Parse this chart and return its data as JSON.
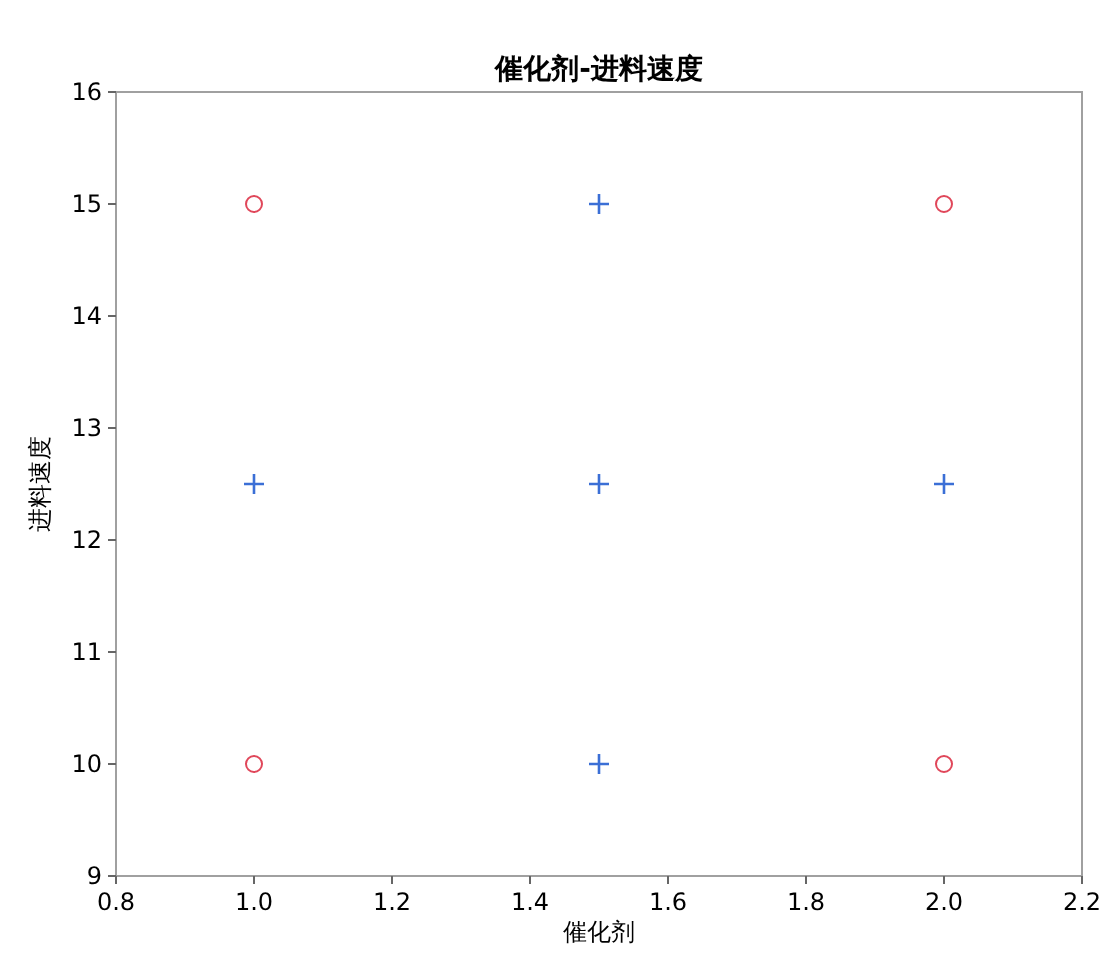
{
  "chart_data": {
    "type": "scatter",
    "title": "催化剂-进料速度",
    "xlabel": "催化剂",
    "ylabel": "进料速度",
    "xlim": [
      0.8,
      2.2
    ],
    "xticks": [
      0.8,
      {
        "value": 1,
        "label": "1.0"
      },
      1.2,
      1.4,
      1.6,
      1.8,
      {
        "value": 2,
        "label": "2.0"
      },
      2.2
    ],
    "ylim": [
      9,
      16
    ],
    "yticks": [
      9,
      10,
      11,
      12,
      13,
      14,
      15,
      16
    ],
    "grid": false,
    "series": [
      {
        "color": "#e0475a",
        "marker": "circle",
        "x": [
          1,
          1,
          2,
          2
        ],
        "values": [
          15,
          10,
          15,
          10
        ]
      },
      {
        "color": "#3b6fd6",
        "marker": "cross",
        "x": [
          1.5,
          1,
          1.5,
          2,
          1.5
        ],
        "values": [
          15,
          12.5,
          12.5,
          12.5,
          10
        ]
      }
    ]
  }
}
